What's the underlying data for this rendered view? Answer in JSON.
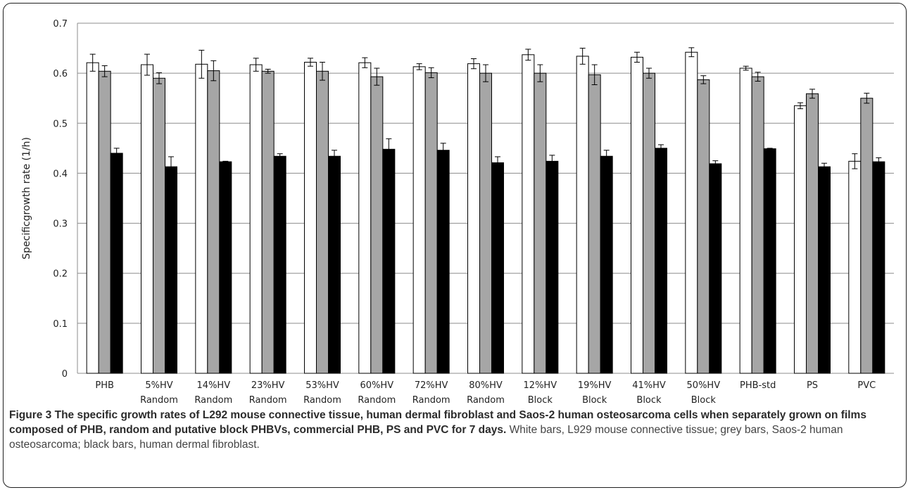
{
  "chart_data": {
    "type": "bar",
    "ylabel": "Specificgrowth rate  (1/h)",
    "ylim": [
      0,
      0.7
    ],
    "yticks": [
      "0",
      "0.1",
      "0.2",
      "0.3",
      "0.4",
      "0.5",
      "0.6",
      "0.7"
    ],
    "grid": true,
    "categories": [
      [
        "PHB",
        ""
      ],
      [
        "5%HV",
        "Random"
      ],
      [
        "14%HV",
        "Random"
      ],
      [
        "23%HV",
        "Random"
      ],
      [
        "53%HV",
        "Random"
      ],
      [
        "60%HV",
        "Random"
      ],
      [
        "72%HV",
        "Random"
      ],
      [
        "80%HV",
        "Random"
      ],
      [
        "12%HV",
        "Block"
      ],
      [
        "19%HV",
        "Block"
      ],
      [
        "41%HV",
        "Block"
      ],
      [
        "50%HV",
        "Block"
      ],
      [
        "PHB-std",
        ""
      ],
      [
        "PS",
        ""
      ],
      [
        "PVC",
        ""
      ]
    ],
    "series": [
      {
        "fill": "#ffffff",
        "values": [
          0.621,
          0.617,
          0.618,
          0.617,
          0.622,
          0.621,
          0.613,
          0.619,
          0.637,
          0.634,
          0.632,
          0.642,
          0.61,
          0.535,
          0.424
        ],
        "errors": [
          0.017,
          0.021,
          0.028,
          0.013,
          0.008,
          0.01,
          0.006,
          0.01,
          0.011,
          0.016,
          0.01,
          0.009,
          0.004,
          0.006,
          0.015
        ]
      },
      {
        "fill": "#a6a6a6",
        "values": [
          0.604,
          0.59,
          0.605,
          0.604,
          0.604,
          0.593,
          0.601,
          0.6,
          0.6,
          0.597,
          0.6,
          0.587,
          0.593,
          0.559,
          0.55
        ],
        "errors": [
          0.011,
          0.011,
          0.02,
          0.004,
          0.018,
          0.017,
          0.01,
          0.017,
          0.017,
          0.02,
          0.01,
          0.008,
          0.009,
          0.009,
          0.01
        ]
      },
      {
        "fill": "#000000",
        "values": [
          0.44,
          0.413,
          0.423,
          0.434,
          0.434,
          0.448,
          0.446,
          0.421,
          0.424,
          0.434,
          0.45,
          0.419,
          0.449,
          0.413,
          0.423
        ],
        "errors": [
          0.01,
          0.02,
          0.001,
          0.005,
          0.012,
          0.021,
          0.014,
          0.012,
          0.012,
          0.012,
          0.007,
          0.006,
          0.001,
          0.007,
          0.008
        ]
      }
    ]
  },
  "caption": {
    "bold": "Figure 3 The specific growth rates of L292 mouse connective tissue, human dermal fibroblast and Saos-2 human osteosarcoma cells when separately grown on films composed of PHB, random and putative block PHBVs, commercial PHB, PS and PVC for 7 days.",
    "rest": " White bars, L929 mouse connective tissue; grey bars, Saos-2 human osteosarcoma; black bars, human dermal fibroblast."
  }
}
